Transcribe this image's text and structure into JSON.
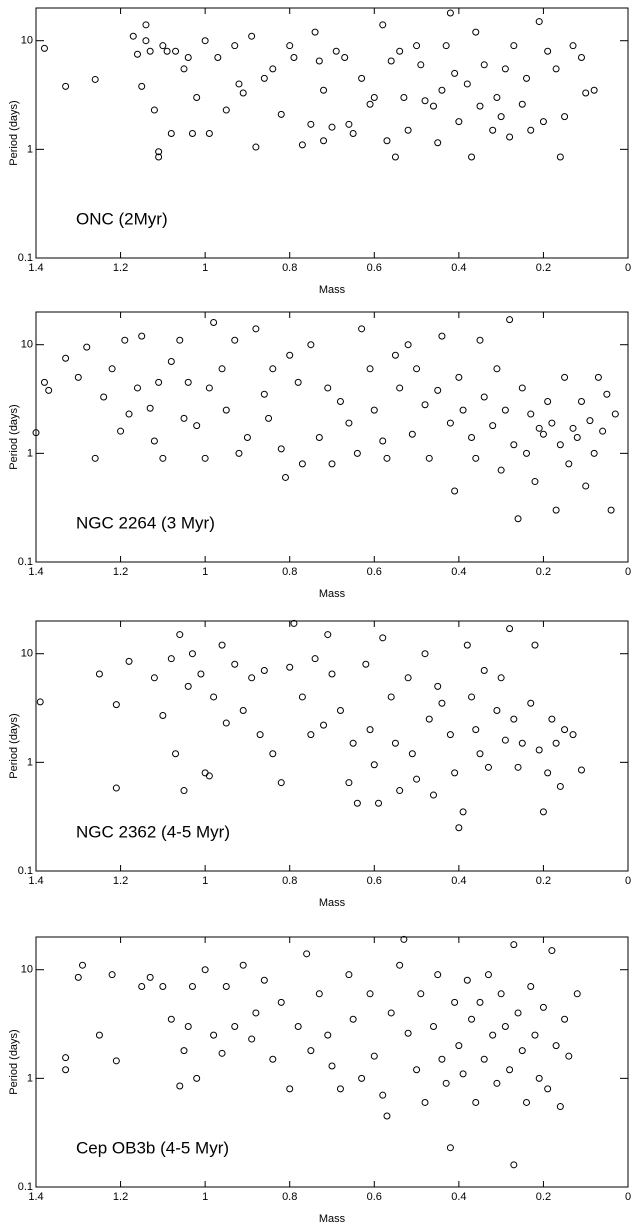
{
  "chart_data": [
    {
      "type": "scatter",
      "annotation": "ONC (2Myr)",
      "x_label": "Mass",
      "y_label": "Period (days)",
      "log_y": true,
      "xlim": [
        1.4,
        0
      ],
      "ylim": [
        0.1,
        20
      ],
      "xticks": [
        1.4,
        1.2,
        1,
        0.8,
        0.6,
        0.4,
        0.2,
        0
      ],
      "yticks": [
        0.1,
        1,
        10
      ],
      "x": [
        1.38,
        1.33,
        1.26,
        1.17,
        1.16,
        1.15,
        1.14,
        1.14,
        1.13,
        1.12,
        1.11,
        1.11,
        1.1,
        1.09,
        1.08,
        1.07,
        1.05,
        1.04,
        1.03,
        1.02,
        1.0,
        0.99,
        0.97,
        0.95,
        0.93,
        0.92,
        0.91,
        0.89,
        0.88,
        0.86,
        0.84,
        0.82,
        0.8,
        0.79,
        0.77,
        0.75,
        0.74,
        0.73,
        0.72,
        0.72,
        0.7,
        0.69,
        0.67,
        0.66,
        0.65,
        0.63,
        0.61,
        0.6,
        0.58,
        0.57,
        0.56,
        0.55,
        0.54,
        0.53,
        0.52,
        0.5,
        0.49,
        0.48,
        0.46,
        0.45,
        0.44,
        0.43,
        0.42,
        0.41,
        0.4,
        0.38,
        0.37,
        0.36,
        0.35,
        0.34,
        0.32,
        0.31,
        0.3,
        0.29,
        0.28,
        0.27,
        0.25,
        0.24,
        0.23,
        0.21,
        0.2,
        0.19,
        0.17,
        0.16,
        0.15,
        0.13,
        0.11,
        0.1,
        0.08
      ],
      "values": [
        8.5,
        3.8,
        4.4,
        11,
        7.5,
        3.8,
        14,
        10,
        8,
        2.3,
        0.85,
        0.95,
        9,
        8,
        1.4,
        8,
        5.5,
        7,
        1.4,
        3,
        10,
        1.4,
        7,
        2.3,
        9,
        4,
        3.3,
        11,
        1.05,
        4.5,
        5.5,
        2.1,
        9,
        7,
        1.1,
        1.7,
        12,
        6.5,
        3.5,
        1.2,
        1.6,
        8,
        7,
        1.7,
        1.4,
        4.5,
        2.6,
        3,
        14,
        1.2,
        6.5,
        0.85,
        8,
        3,
        1.5,
        9,
        6,
        2.8,
        2.5,
        1.15,
        3.5,
        9,
        18,
        5,
        1.8,
        4,
        0.85,
        12,
        2.5,
        6,
        1.5,
        3,
        2,
        5.5,
        1.3,
        9,
        2.6,
        4.5,
        1.5,
        15,
        1.8,
        8,
        5.5,
        0.85,
        2,
        9,
        7,
        3.3,
        3.5
      ]
    },
    {
      "type": "scatter",
      "annotation": "NGC 2264 (3 Myr)",
      "x_label": "Mass",
      "y_label": "Period (days)",
      "log_y": true,
      "xlim": [
        1.4,
        0
      ],
      "ylim": [
        0.1,
        20
      ],
      "xticks": [
        1.4,
        1.2,
        1,
        0.8,
        0.6,
        0.4,
        0.2,
        0
      ],
      "yticks": [
        0.1,
        1,
        10
      ],
      "x": [
        1.4,
        1.38,
        1.37,
        1.33,
        1.3,
        1.28,
        1.26,
        1.24,
        1.22,
        1.2,
        1.19,
        1.18,
        1.16,
        1.15,
        1.13,
        1.12,
        1.11,
        1.1,
        1.08,
        1.06,
        1.05,
        1.04,
        1.02,
        1.0,
        0.99,
        0.98,
        0.96,
        0.95,
        0.93,
        0.92,
        0.9,
        0.88,
        0.86,
        0.85,
        0.84,
        0.82,
        0.81,
        0.8,
        0.78,
        0.77,
        0.75,
        0.73,
        0.71,
        0.7,
        0.68,
        0.66,
        0.64,
        0.63,
        0.61,
        0.6,
        0.58,
        0.57,
        0.55,
        0.54,
        0.52,
        0.51,
        0.5,
        0.48,
        0.47,
        0.45,
        0.44,
        0.42,
        0.41,
        0.4,
        0.39,
        0.37,
        0.36,
        0.35,
        0.34,
        0.32,
        0.31,
        0.3,
        0.29,
        0.28,
        0.27,
        0.26,
        0.25,
        0.24,
        0.23,
        0.22,
        0.21,
        0.2,
        0.19,
        0.18,
        0.17,
        0.16,
        0.15,
        0.14,
        0.13,
        0.12,
        0.11,
        0.1,
        0.09,
        0.08,
        0.07,
        0.06,
        0.05,
        0.04,
        0.03
      ],
      "values": [
        1.55,
        4.5,
        3.8,
        7.5,
        5,
        9.5,
        0.9,
        3.3,
        6,
        1.6,
        11,
        2.3,
        4,
        12,
        2.6,
        1.3,
        4.5,
        0.9,
        7,
        11,
        2.1,
        4.5,
        1.8,
        0.9,
        4,
        16,
        6,
        2.5,
        11,
        1.0,
        1.4,
        14,
        3.5,
        2.1,
        6,
        1.1,
        0.6,
        8,
        4.5,
        0.8,
        10,
        1.4,
        4,
        0.8,
        3,
        1.9,
        1.0,
        14,
        6,
        2.5,
        1.3,
        0.9,
        8,
        4,
        10,
        1.5,
        6,
        2.8,
        0.9,
        3.8,
        12,
        1.9,
        0.45,
        5,
        2.5,
        1.4,
        0.9,
        11,
        3.3,
        1.8,
        6,
        0.7,
        2.5,
        17,
        1.2,
        0.25,
        4,
        1.0,
        2.3,
        0.55,
        1.7,
        1.5,
        3,
        1.9,
        0.3,
        1.2,
        5,
        0.8,
        1.7,
        1.4,
        3,
        0.5,
        2,
        1.0,
        5,
        1.6,
        3.5,
        0.3,
        2.3
      ]
    },
    {
      "type": "scatter",
      "annotation": "NGC 2362 (4-5 Myr)",
      "x_label": "Mass",
      "y_label": "Period (days)",
      "log_y": true,
      "xlim": [
        1.4,
        0
      ],
      "ylim": [
        0.1,
        20
      ],
      "xticks": [
        1.4,
        1.2,
        1,
        0.8,
        0.6,
        0.4,
        0.2,
        0
      ],
      "yticks": [
        0.1,
        1,
        10
      ],
      "x": [
        1.39,
        1.25,
        1.21,
        1.21,
        1.18,
        1.12,
        1.1,
        1.08,
        1.07,
        1.06,
        1.05,
        1.04,
        1.03,
        1.01,
        1.0,
        0.99,
        0.98,
        0.96,
        0.95,
        0.93,
        0.91,
        0.89,
        0.87,
        0.86,
        0.84,
        0.82,
        0.8,
        0.79,
        0.77,
        0.75,
        0.74,
        0.72,
        0.71,
        0.7,
        0.68,
        0.66,
        0.65,
        0.64,
        0.62,
        0.61,
        0.6,
        0.59,
        0.58,
        0.56,
        0.55,
        0.54,
        0.52,
        0.51,
        0.5,
        0.48,
        0.47,
        0.46,
        0.45,
        0.44,
        0.42,
        0.41,
        0.4,
        0.39,
        0.38,
        0.37,
        0.36,
        0.35,
        0.34,
        0.33,
        0.31,
        0.3,
        0.29,
        0.28,
        0.27,
        0.26,
        0.25,
        0.23,
        0.22,
        0.21,
        0.2,
        0.19,
        0.18,
        0.17,
        0.16,
        0.15,
        0.13,
        0.11
      ],
      "values": [
        3.6,
        6.5,
        3.4,
        0.58,
        8.5,
        6,
        2.7,
        9,
        1.2,
        15,
        0.55,
        5,
        10,
        6.5,
        0.8,
        0.75,
        4,
        12,
        2.3,
        8,
        3,
        6,
        1.8,
        7,
        1.2,
        0.65,
        7.5,
        19,
        4,
        1.8,
        9,
        2.2,
        15,
        6.5,
        3,
        0.65,
        1.5,
        0.42,
        8,
        2,
        0.95,
        0.42,
        14,
        4,
        1.5,
        0.55,
        6,
        1.2,
        0.7,
        10,
        2.5,
        0.5,
        5,
        3.5,
        1.8,
        0.8,
        0.25,
        0.35,
        12,
        4,
        2,
        1.2,
        7,
        0.9,
        3,
        6,
        1.6,
        17,
        2.5,
        0.9,
        1.5,
        3.5,
        12,
        1.3,
        0.35,
        0.8,
        2.5,
        1.5,
        0.6,
        2,
        1.8,
        0.85
      ]
    },
    {
      "type": "scatter",
      "annotation": "Cep OB3b (4-5 Myr)",
      "x_label": "Mass",
      "y_label": "Period (days)",
      "log_y": true,
      "xlim": [
        1.4,
        0
      ],
      "ylim": [
        0.1,
        20
      ],
      "xticks": [
        1.4,
        1.2,
        1,
        0.8,
        0.6,
        0.4,
        0.2,
        0
      ],
      "yticks": [
        0.1,
        1,
        10
      ],
      "x": [
        1.33,
        1.33,
        1.3,
        1.29,
        1.25,
        1.22,
        1.21,
        1.15,
        1.13,
        1.1,
        1.08,
        1.06,
        1.05,
        1.04,
        1.03,
        1.02,
        1.0,
        0.98,
        0.96,
        0.95,
        0.93,
        0.91,
        0.89,
        0.88,
        0.86,
        0.84,
        0.82,
        0.8,
        0.78,
        0.76,
        0.75,
        0.73,
        0.71,
        0.7,
        0.68,
        0.66,
        0.65,
        0.63,
        0.61,
        0.6,
        0.58,
        0.57,
        0.56,
        0.54,
        0.53,
        0.52,
        0.5,
        0.49,
        0.48,
        0.46,
        0.45,
        0.44,
        0.43,
        0.42,
        0.41,
        0.4,
        0.39,
        0.38,
        0.37,
        0.36,
        0.35,
        0.34,
        0.33,
        0.32,
        0.31,
        0.3,
        0.29,
        0.28,
        0.27,
        0.27,
        0.26,
        0.25,
        0.24,
        0.23,
        0.22,
        0.21,
        0.2,
        0.19,
        0.18,
        0.17,
        0.16,
        0.15,
        0.14,
        0.12
      ],
      "values": [
        1.55,
        1.2,
        8.5,
        11,
        2.5,
        9,
        1.45,
        7,
        8.5,
        7,
        3.5,
        0.85,
        1.8,
        3,
        7,
        1.0,
        10,
        2.5,
        1.7,
        7,
        3,
        11,
        2.3,
        4,
        8,
        1.5,
        5,
        0.8,
        3,
        14,
        1.8,
        6,
        2.5,
        1.3,
        0.8,
        9,
        3.5,
        1.0,
        6,
        1.6,
        0.7,
        0.45,
        4,
        11,
        19,
        2.6,
        1.2,
        6,
        0.6,
        3,
        9,
        1.5,
        0.9,
        0.23,
        5,
        2,
        1.1,
        8,
        3.5,
        0.6,
        5,
        1.5,
        9,
        2.5,
        0.9,
        6,
        3,
        1.2,
        17,
        0.16,
        4,
        1.8,
        0.6,
        7,
        2.5,
        1.0,
        4.5,
        0.8,
        15,
        2,
        0.55,
        3.5,
        1.6,
        6
      ]
    }
  ]
}
